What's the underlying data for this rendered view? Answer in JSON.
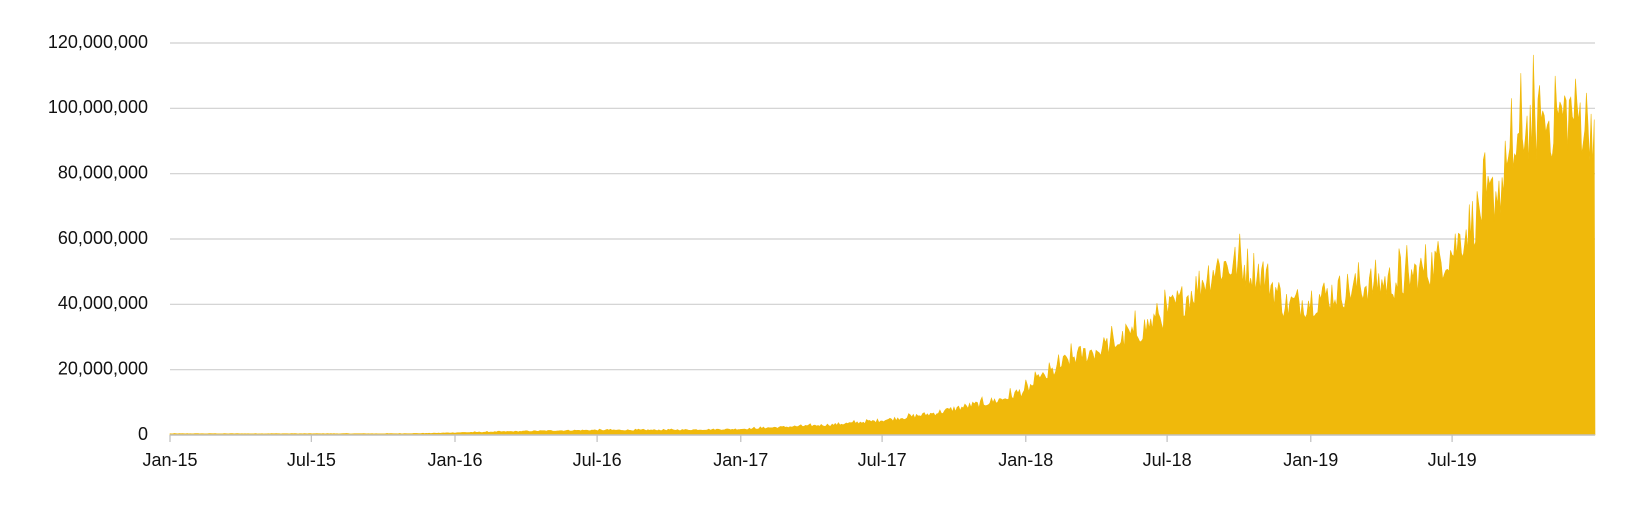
{
  "chart_data": {
    "type": "area",
    "title": "",
    "xlabel": "",
    "ylabel": "",
    "xlim": [
      "2015-01-01",
      "2019-12-31"
    ],
    "ylim": [
      0,
      120000000
    ],
    "grid": true,
    "legend": "none",
    "color": "#F0B90B",
    "y_ticks": [
      {
        "value": 0,
        "label": "0"
      },
      {
        "value": 20000000,
        "label": "20,000,000"
      },
      {
        "value": 40000000,
        "label": "40,000,000"
      },
      {
        "value": 60000000,
        "label": "60,000,000"
      },
      {
        "value": 80000000,
        "label": "80,000,000"
      },
      {
        "value": 100000000,
        "label": "100,000,000"
      },
      {
        "value": 120000000,
        "label": "120,000,000"
      }
    ],
    "x_ticks": [
      {
        "value": "2015-01-01",
        "label": "Jan-15"
      },
      {
        "value": "2015-07-01",
        "label": "Jul-15"
      },
      {
        "value": "2016-01-01",
        "label": "Jan-16"
      },
      {
        "value": "2016-07-01",
        "label": "Jul-16"
      },
      {
        "value": "2017-01-01",
        "label": "Jan-17"
      },
      {
        "value": "2017-07-01",
        "label": "Jul-17"
      },
      {
        "value": "2018-01-01",
        "label": "Jan-18"
      },
      {
        "value": "2018-07-01",
        "label": "Jul-18"
      },
      {
        "value": "2019-01-01",
        "label": "Jan-19"
      },
      {
        "value": "2019-07-01",
        "label": "Jul-19"
      }
    ],
    "x": [
      "2015-01-01",
      "2015-04-01",
      "2015-07-01",
      "2015-10-01",
      "2015-12-01",
      "2016-01-01",
      "2016-03-01",
      "2016-05-01",
      "2016-07-01",
      "2016-09-01",
      "2016-11-01",
      "2017-01-01",
      "2017-03-01",
      "2017-05-01",
      "2017-07-01",
      "2017-08-01",
      "2017-09-01",
      "2017-10-01",
      "2017-11-01",
      "2017-12-01",
      "2018-01-01",
      "2018-02-01",
      "2018-03-01",
      "2018-04-01",
      "2018-05-01",
      "2018-06-01",
      "2018-07-01",
      "2018-08-01",
      "2018-09-01",
      "2018-10-01",
      "2018-11-01",
      "2018-12-01",
      "2019-01-01",
      "2019-02-01",
      "2019-03-01",
      "2019-04-01",
      "2019-05-01",
      "2019-06-01",
      "2019-07-01",
      "2019-08-01",
      "2019-09-01",
      "2019-10-01",
      "2019-11-01",
      "2019-12-01",
      "2019-12-31"
    ],
    "series": [
      {
        "values": [
          400000,
          400000,
          400000,
          400000,
          500000,
          700000,
          1000000,
          1300000,
          1500000,
          1500000,
          1600000,
          1800000,
          2500000,
          3200000,
          4500000,
          5500000,
          6500000,
          8000000,
          9500000,
          11000000,
          14000000,
          19000000,
          24000000,
          26000000,
          29000000,
          33000000,
          38000000,
          44000000,
          52000000,
          53000000,
          50000000,
          40000000,
          42000000,
          44000000,
          46000000,
          47000000,
          48000000,
          52000000,
          57000000,
          68000000,
          77000000,
          95000000,
          97000000,
          100000000,
          96000000
        ]
      }
    ]
  }
}
